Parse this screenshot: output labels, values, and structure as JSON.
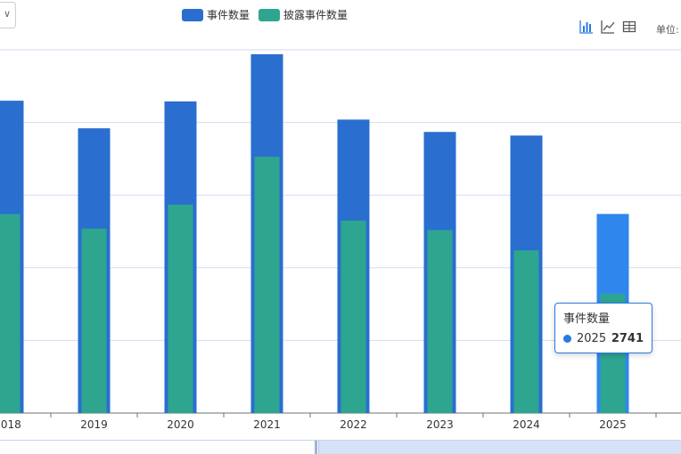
{
  "toolbar": {
    "select_chevron": "∨",
    "tool_icons": [
      "bar-chart-icon",
      "line-chart-icon",
      "table-icon"
    ],
    "unit_label": "单位:"
  },
  "chart_data": {
    "type": "bar",
    "title": "",
    "xlabel": "",
    "ylabel": "",
    "categories": [
      "2018",
      "2019",
      "2020",
      "2021",
      "2022",
      "2023",
      "2024",
      "2025"
    ],
    "series": [
      {
        "name": "事件数量",
        "color": "#2a6ed0",
        "values": [
          4300,
          3920,
          4290,
          4940,
          4040,
          3870,
          3820,
          2741
        ]
      },
      {
        "name": "披露事件数量",
        "color": "#2ea58f",
        "values": [
          2740,
          2540,
          2870,
          3530,
          2650,
          2520,
          2240,
          1640
        ]
      }
    ],
    "highlight_color": "#2f87ee",
    "ylim": [
      0,
      5000
    ],
    "grid": true,
    "legend_position": "top-center"
  },
  "tooltip": {
    "title": "事件数量",
    "category": "2025",
    "value": "2741"
  }
}
